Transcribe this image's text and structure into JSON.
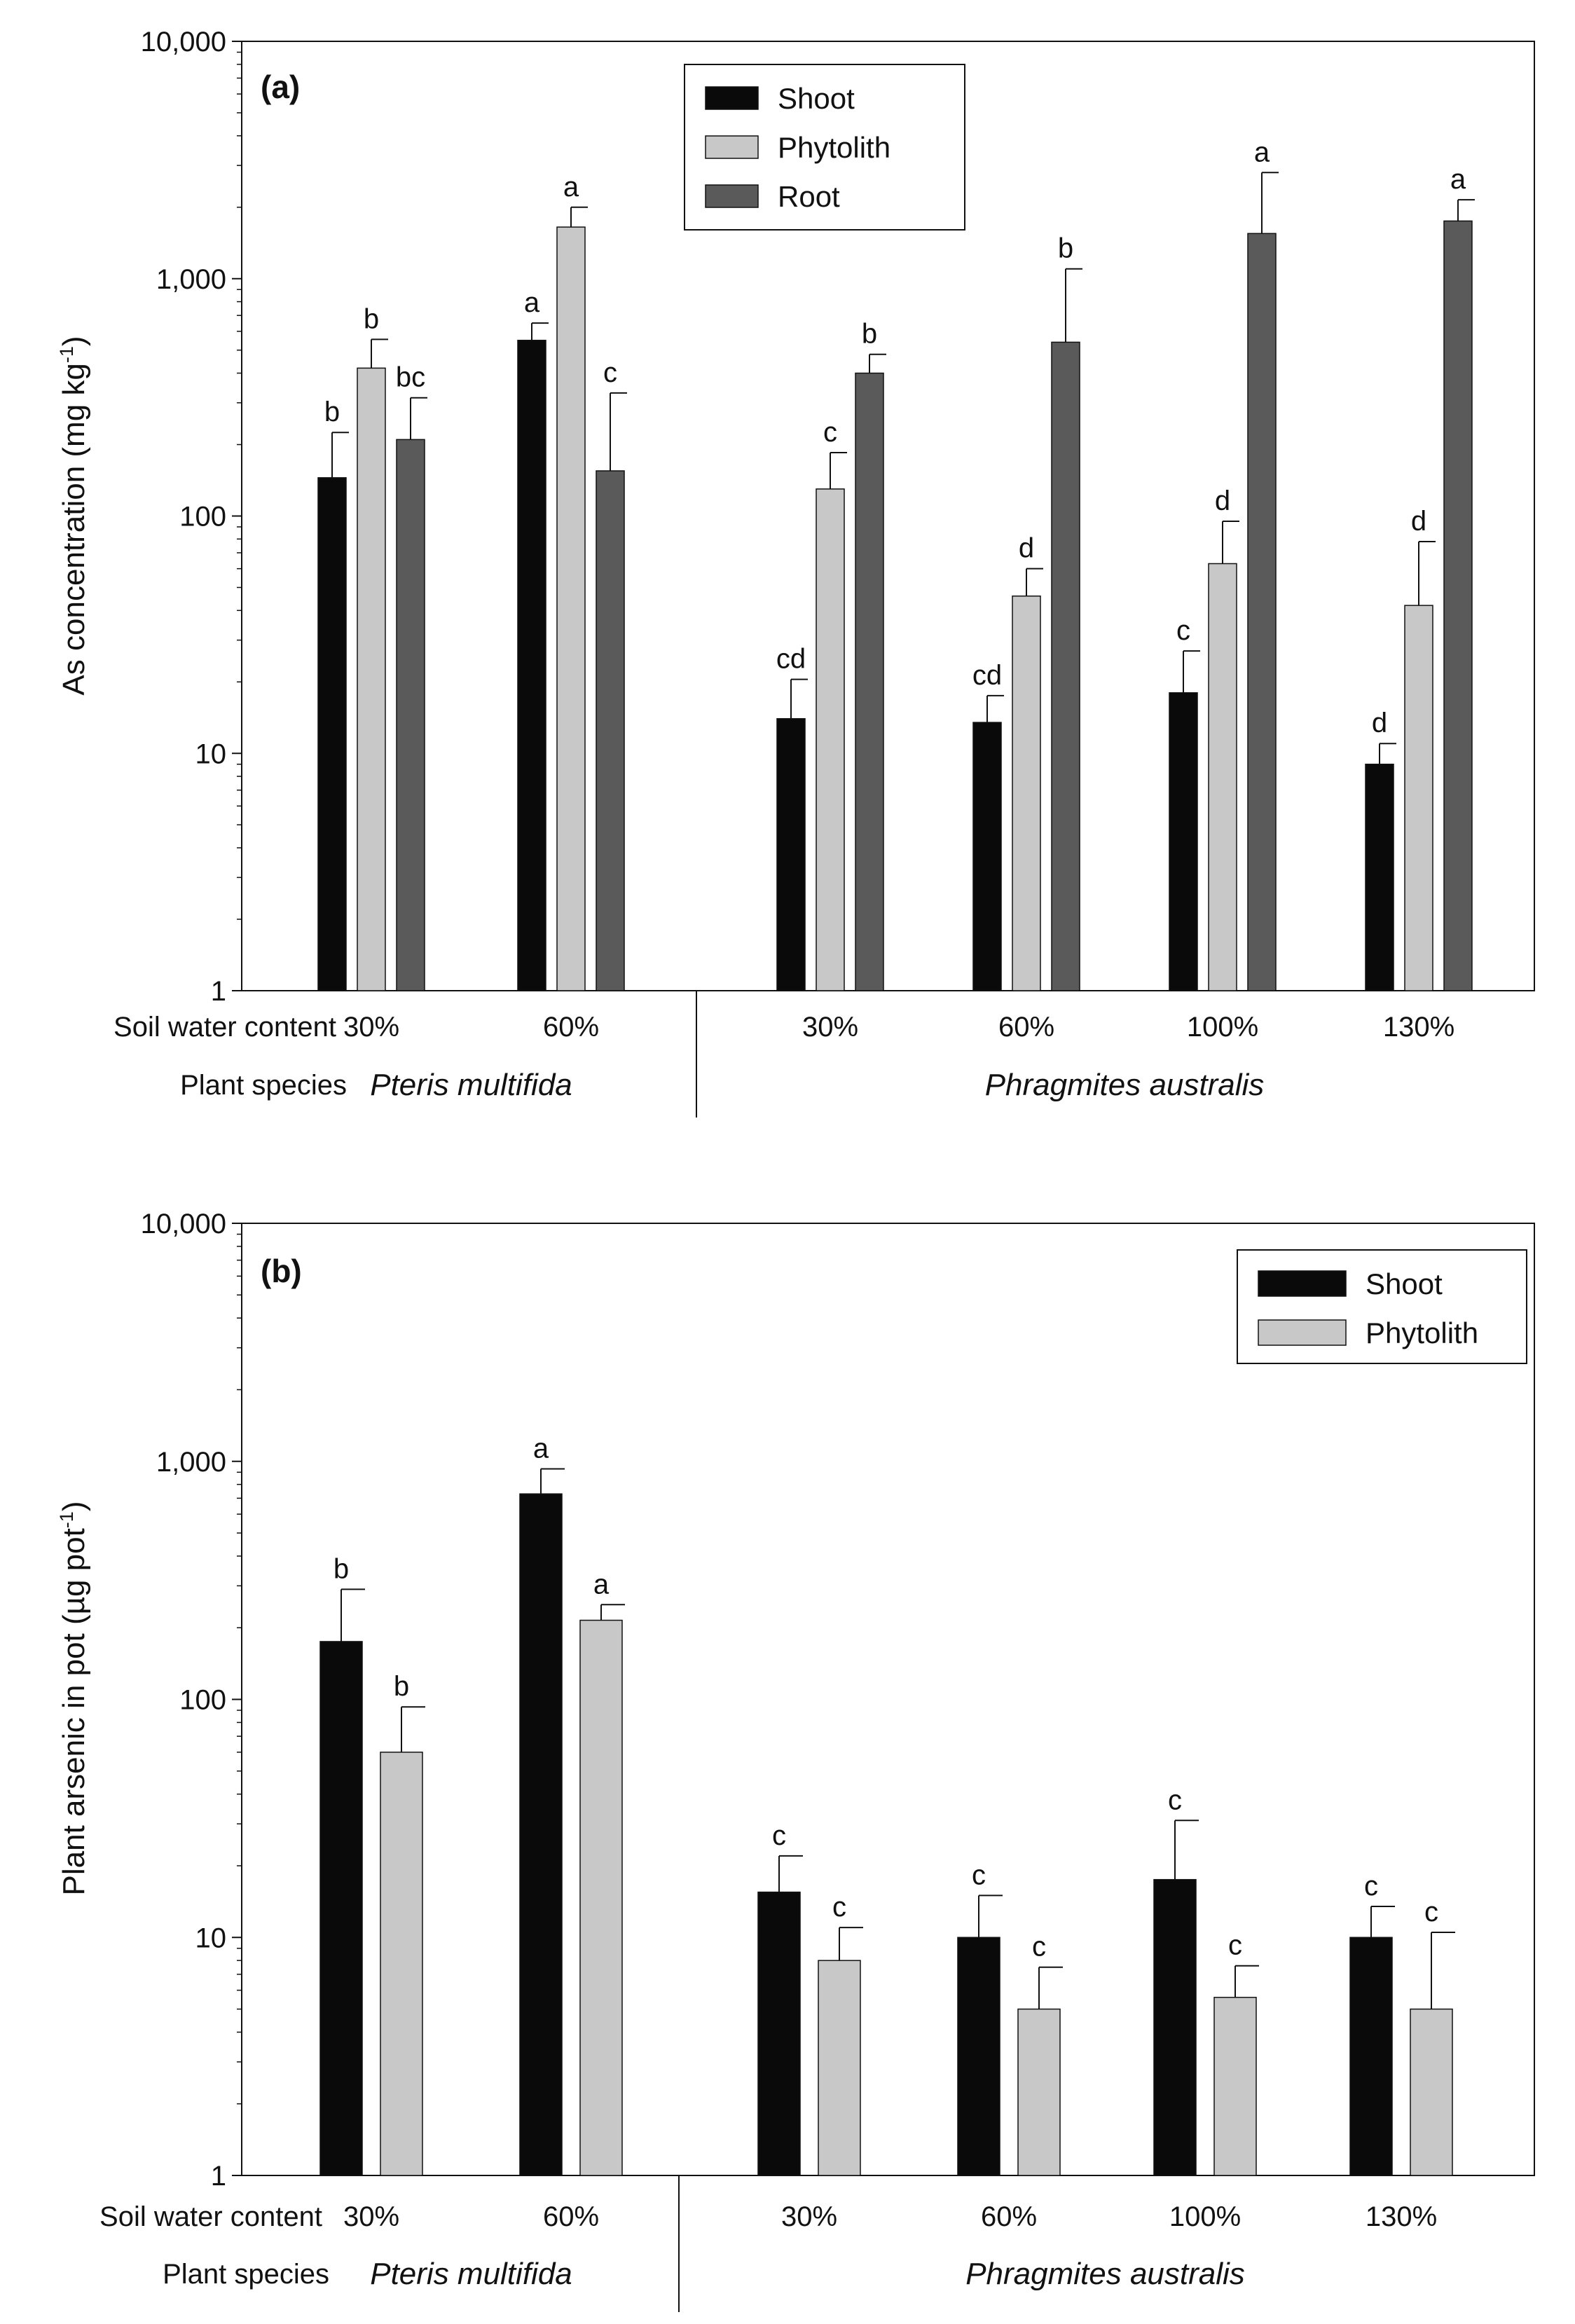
{
  "chart_data": [
    {
      "type": "bar",
      "panel_label": "(a)",
      "ylabel": "As concentration (mg kg",
      "ylabel_sup": "-1",
      "ylabel_close": ")",
      "yscale": "log",
      "ylim": [
        1,
        10000
      ],
      "yticks": [
        {
          "value": 1,
          "label": "1"
        },
        {
          "value": 10,
          "label": "10"
        },
        {
          "value": 100,
          "label": "100"
        },
        {
          "value": 1000,
          "label": "1,000"
        },
        {
          "value": 10000,
          "label": "10,000"
        }
      ],
      "row_labels": {
        "water": "Soil water content",
        "species": "Plant species"
      },
      "groups": [
        {
          "name": "Pteris multifida",
          "categories": [
            "30%",
            "60%"
          ]
        },
        {
          "name": "Phragmites australis",
          "categories": [
            "30%",
            "60%",
            "100%",
            "130%"
          ]
        }
      ],
      "legend_position": "top-center",
      "series": [
        {
          "name": "Shoot",
          "color": "#0a0a0a",
          "values": [
            145,
            550,
            14,
            13.5,
            18,
            9
          ],
          "errors": [
            225,
            650,
            20.5,
            17.5,
            27,
            11
          ],
          "letters": [
            "b",
            "a",
            "cd",
            "cd",
            "c",
            "d"
          ]
        },
        {
          "name": "Phytolith",
          "color": "#c8c8c8",
          "values": [
            420,
            1650,
            130,
            46,
            63,
            42
          ],
          "errors": [
            555,
            2000,
            185,
            60,
            95,
            78
          ],
          "letters": [
            "b",
            "a",
            "c",
            "d",
            "d",
            "d"
          ]
        },
        {
          "name": "Root",
          "color": "#5a5a5a",
          "values": [
            210,
            155,
            400,
            540,
            1550,
            1750
          ],
          "errors": [
            315,
            330,
            480,
            1100,
            2800,
            2150
          ],
          "letters": [
            "bc",
            "c",
            "b",
            "b",
            "a",
            "a"
          ]
        }
      ]
    },
    {
      "type": "bar",
      "panel_label": "(b)",
      "ylabel": "Plant arsenic in pot (µg pot",
      "ylabel_sup": "-1",
      "ylabel_close": ")",
      "yscale": "log",
      "ylim": [
        1,
        10000
      ],
      "yticks": [
        {
          "value": 1,
          "label": "1"
        },
        {
          "value": 10,
          "label": "10"
        },
        {
          "value": 100,
          "label": "100"
        },
        {
          "value": 1000,
          "label": "1,000"
        },
        {
          "value": 10000,
          "label": "10,000"
        }
      ],
      "row_labels": {
        "water": "Soil water content",
        "species": "Plant species"
      },
      "groups": [
        {
          "name": "Pteris multifida",
          "categories": [
            "30%",
            "60%"
          ]
        },
        {
          "name": "Phragmites australis",
          "categories": [
            "30%",
            "60%",
            "100%",
            "130%"
          ]
        }
      ],
      "legend_position": "top-right",
      "series": [
        {
          "name": "Shoot",
          "color": "#0a0a0a",
          "values": [
            175,
            730,
            15.5,
            10,
            17.5,
            10
          ],
          "errors": [
            290,
            930,
            22,
            15,
            31,
            13.5
          ],
          "letters": [
            "b",
            "a",
            "c",
            "c",
            "c",
            "c"
          ]
        },
        {
          "name": "Phytolith",
          "color": "#c8c8c8",
          "values": [
            60,
            215,
            8,
            5,
            5.6,
            5
          ],
          "errors": [
            93,
            250,
            11,
            7.5,
            7.6,
            10.5
          ],
          "letters": [
            "b",
            "a",
            "c",
            "c",
            "c",
            "c"
          ]
        }
      ]
    }
  ]
}
